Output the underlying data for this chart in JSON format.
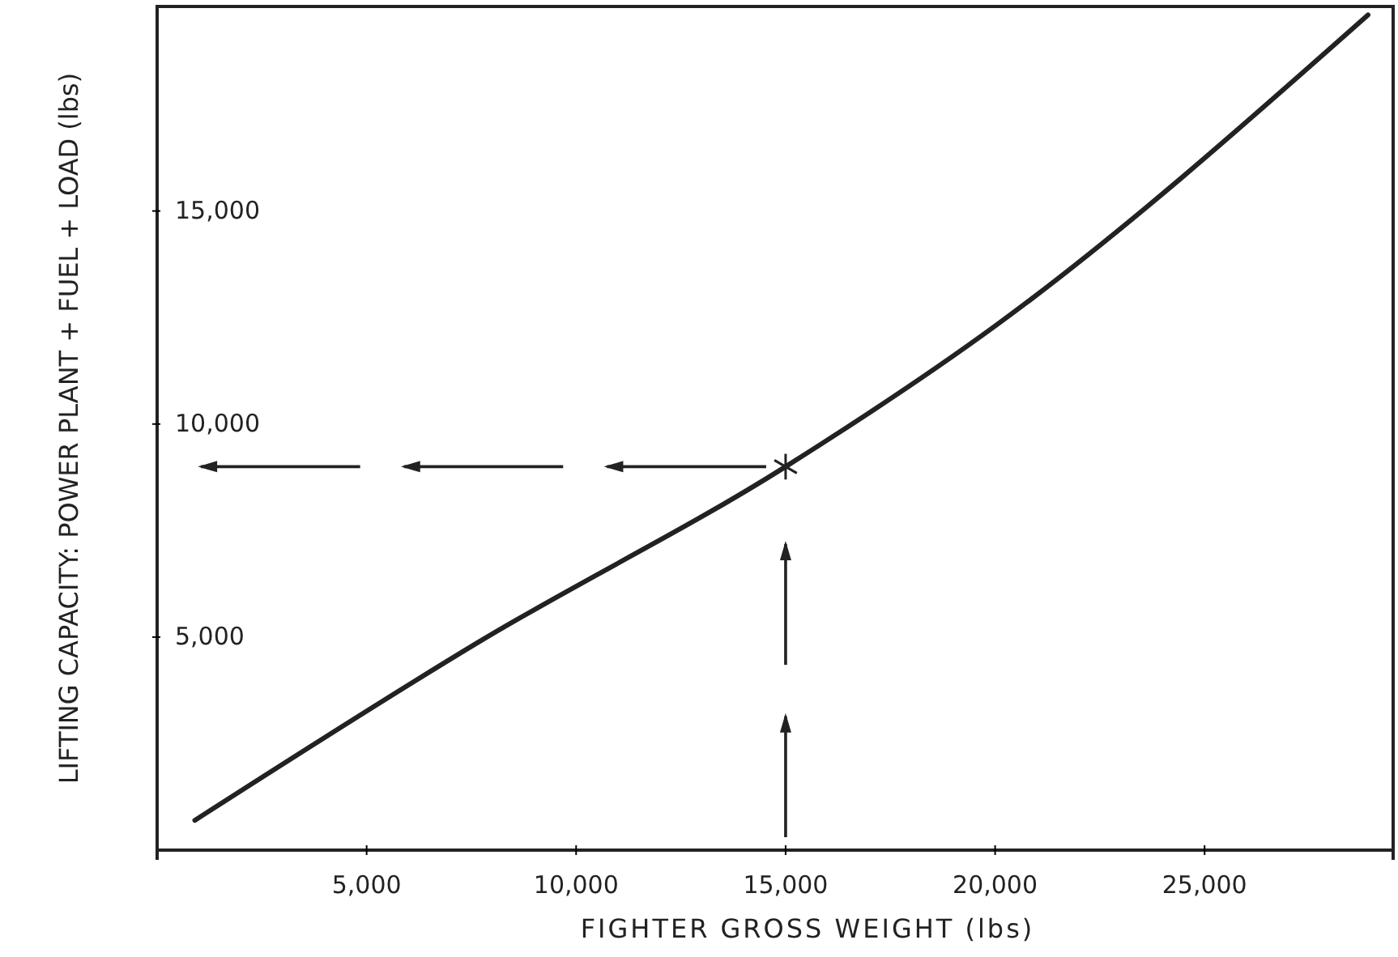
{
  "chart_data": {
    "type": "line",
    "xlabel": "FIGHTER GROSS WEIGHT (lbs)",
    "ylabel": "LIFTING CAPACITY: POWER PLANT + FUEL + LOAD (lbs)",
    "xlim": [
      0,
      29500
    ],
    "ylim": [
      0,
      19800
    ],
    "xticks": [
      {
        "value": 5000,
        "label": "5,000"
      },
      {
        "value": 10000,
        "label": "10,000"
      },
      {
        "value": 15000,
        "label": "15,000"
      },
      {
        "value": 20000,
        "label": "20,000"
      },
      {
        "value": 25000,
        "label": "25,000"
      }
    ],
    "yticks": [
      {
        "value": 5000,
        "label": "5,000"
      },
      {
        "value": 10000,
        "label": "10,000"
      },
      {
        "value": 15000,
        "label": "15,000"
      }
    ],
    "grid": false,
    "series": [
      {
        "color": "#222222",
        "x": [
          900,
          7700,
          15000,
          20000,
          28900
        ],
        "values": [
          700,
          4900,
          9000,
          12300,
          19600
        ],
        "marker": "none"
      },
      {
        "type": "scatter",
        "color": "#222222",
        "x": [
          15000
        ],
        "values": [
          9000
        ],
        "marker": "cross"
      }
    ]
  }
}
